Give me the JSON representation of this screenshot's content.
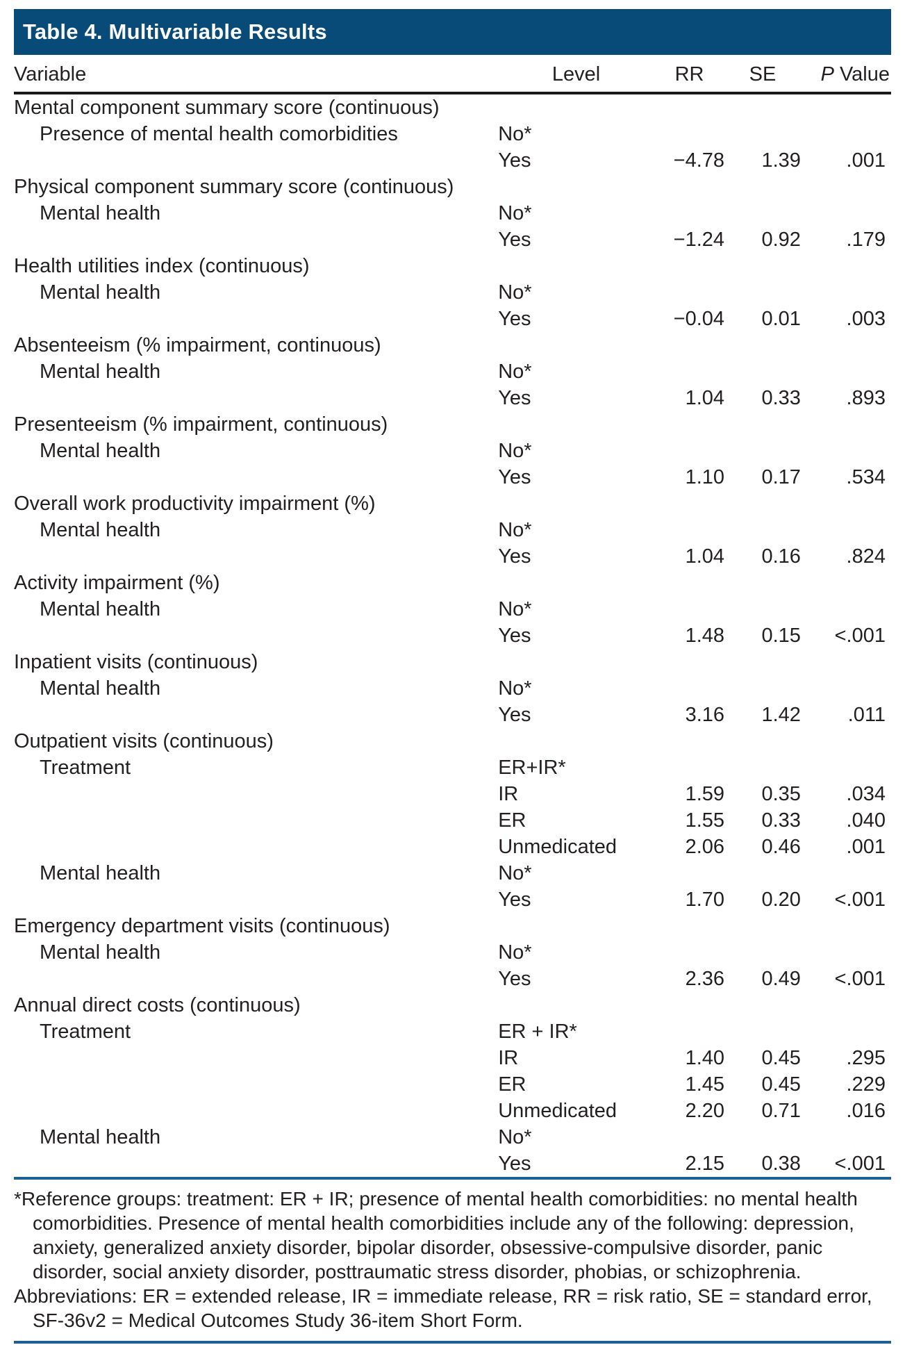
{
  "title": "Table 4. Multivariable Results",
  "colors": {
    "title_band": "#084a78",
    "blue_rule": "#1e5f96",
    "header_rule": "#1a1a1a",
    "text": "#231f20"
  },
  "table": {
    "headers": {
      "variable": "Variable",
      "level": "Level",
      "rr": "RR",
      "se": "SE",
      "p_italic": "P",
      "p_rest": " Value"
    },
    "rows": [
      {
        "section": true,
        "v": "Mental component summary score (continuous)",
        "level": "",
        "rr": "",
        "se": "",
        "p": ""
      },
      {
        "v": "Presence of mental health comorbidities",
        "level": "No*",
        "rr": "",
        "se": "",
        "p": ""
      },
      {
        "v": "",
        "level": "Yes",
        "rr": "−4.78",
        "se": "1.39",
        "p": ".001"
      },
      {
        "section": true,
        "v": "Physical component summary score (continuous)",
        "level": "",
        "rr": "",
        "se": "",
        "p": ""
      },
      {
        "v": "Mental health",
        "level": "No*",
        "rr": "",
        "se": "",
        "p": ""
      },
      {
        "v": "",
        "level": "Yes",
        "rr": "−1.24",
        "se": "0.92",
        "p": ".179"
      },
      {
        "section": true,
        "v": "Health utilities index (continuous)",
        "level": "",
        "rr": "",
        "se": "",
        "p": ""
      },
      {
        "v": "Mental health",
        "level": "No*",
        "rr": "",
        "se": "",
        "p": ""
      },
      {
        "v": "",
        "level": "Yes",
        "rr": "−0.04",
        "se": "0.01",
        "p": ".003"
      },
      {
        "section": true,
        "v": "Absenteeism (% impairment, continuous)",
        "level": "",
        "rr": "",
        "se": "",
        "p": ""
      },
      {
        "v": "Mental health",
        "level": "No*",
        "rr": "",
        "se": "",
        "p": ""
      },
      {
        "v": "",
        "level": "Yes",
        "rr": "1.04",
        "se": "0.33",
        "p": ".893"
      },
      {
        "section": true,
        "v": "Presenteeism (% impairment, continuous)",
        "level": "",
        "rr": "",
        "se": "",
        "p": ""
      },
      {
        "v": "Mental health",
        "level": "No*",
        "rr": "",
        "se": "",
        "p": ""
      },
      {
        "v": "",
        "level": "Yes",
        "rr": "1.10",
        "se": "0.17",
        "p": ".534"
      },
      {
        "section": true,
        "v": "Overall work productivity impairment (%)",
        "level": "",
        "rr": "",
        "se": "",
        "p": ""
      },
      {
        "v": "Mental health",
        "level": "No*",
        "rr": "",
        "se": "",
        "p": ""
      },
      {
        "v": "",
        "level": "Yes",
        "rr": "1.04",
        "se": "0.16",
        "p": ".824"
      },
      {
        "section": true,
        "v": "Activity impairment (%)",
        "level": "",
        "rr": "",
        "se": "",
        "p": ""
      },
      {
        "v": "Mental health",
        "level": "No*",
        "rr": "",
        "se": "",
        "p": ""
      },
      {
        "v": "",
        "level": "Yes",
        "rr": "1.48",
        "se": "0.15",
        "p": "<.001"
      },
      {
        "section": true,
        "v": "Inpatient visits (continuous)",
        "level": "",
        "rr": "",
        "se": "",
        "p": ""
      },
      {
        "v": "Mental health",
        "level": "No*",
        "rr": "",
        "se": "",
        "p": ""
      },
      {
        "v": "",
        "level": "Yes",
        "rr": "3.16",
        "se": "1.42",
        "p": ".011"
      },
      {
        "section": true,
        "v": "Outpatient visits (continuous)",
        "level": "",
        "rr": "",
        "se": "",
        "p": ""
      },
      {
        "v": "Treatment",
        "level": "ER+IR*",
        "rr": "",
        "se": "",
        "p": ""
      },
      {
        "v": "",
        "level": "IR",
        "rr": "1.59",
        "se": "0.35",
        "p": ".034"
      },
      {
        "v": "",
        "level": "ER",
        "rr": "1.55",
        "se": "0.33",
        "p": ".040"
      },
      {
        "v": "",
        "level": "Unmedicated",
        "rr": "2.06",
        "se": "0.46",
        "p": ".001"
      },
      {
        "v": "Mental health",
        "level": "No*",
        "rr": "",
        "se": "",
        "p": ""
      },
      {
        "v": "",
        "level": "Yes",
        "rr": "1.70",
        "se": "0.20",
        "p": "<.001"
      },
      {
        "section": true,
        "v": "Emergency department visits (continuous)",
        "level": "",
        "rr": "",
        "se": "",
        "p": ""
      },
      {
        "v": "Mental health",
        "level": "No*",
        "rr": "",
        "se": "",
        "p": ""
      },
      {
        "v": "",
        "level": "Yes",
        "rr": "2.36",
        "se": "0.49",
        "p": "<.001"
      },
      {
        "section": true,
        "v": "Annual direct costs (continuous)",
        "level": "",
        "rr": "",
        "se": "",
        "p": ""
      },
      {
        "v": "Treatment",
        "level": "ER + IR*",
        "rr": "",
        "se": "",
        "p": ""
      },
      {
        "v": "",
        "level": "IR",
        "rr": "1.40",
        "se": "0.45",
        "p": ".295"
      },
      {
        "v": "",
        "level": "ER",
        "rr": "1.45",
        "se": "0.45",
        "p": ".229"
      },
      {
        "v": "",
        "level": "Unmedicated",
        "rr": "2.20",
        "se": "0.71",
        "p": ".016"
      },
      {
        "v": "Mental health",
        "level": "No*",
        "rr": "",
        "se": "",
        "p": ""
      },
      {
        "v": "",
        "level": "Yes",
        "rr": "2.15",
        "se": "0.38",
        "p": "<.001"
      }
    ]
  },
  "footnotes": {
    "reference": "*Reference groups: treatment: ER + IR; presence of mental health comorbidities: no mental health comorbidities. Presence of mental health comorbidities include any of the following: depression, anxiety, generalized anxiety disorder, bipolar disorder, obsessive-compulsive disorder, panic disorder, social anxiety disorder, posttraumatic stress disorder, phobias, or schizophrenia.",
    "abbreviations": "Abbreviations: ER = extended release, IR = immediate release, RR = risk ratio, SE = standard error, SF-36v2 = Medical Outcomes Study 36-item Short Form."
  }
}
